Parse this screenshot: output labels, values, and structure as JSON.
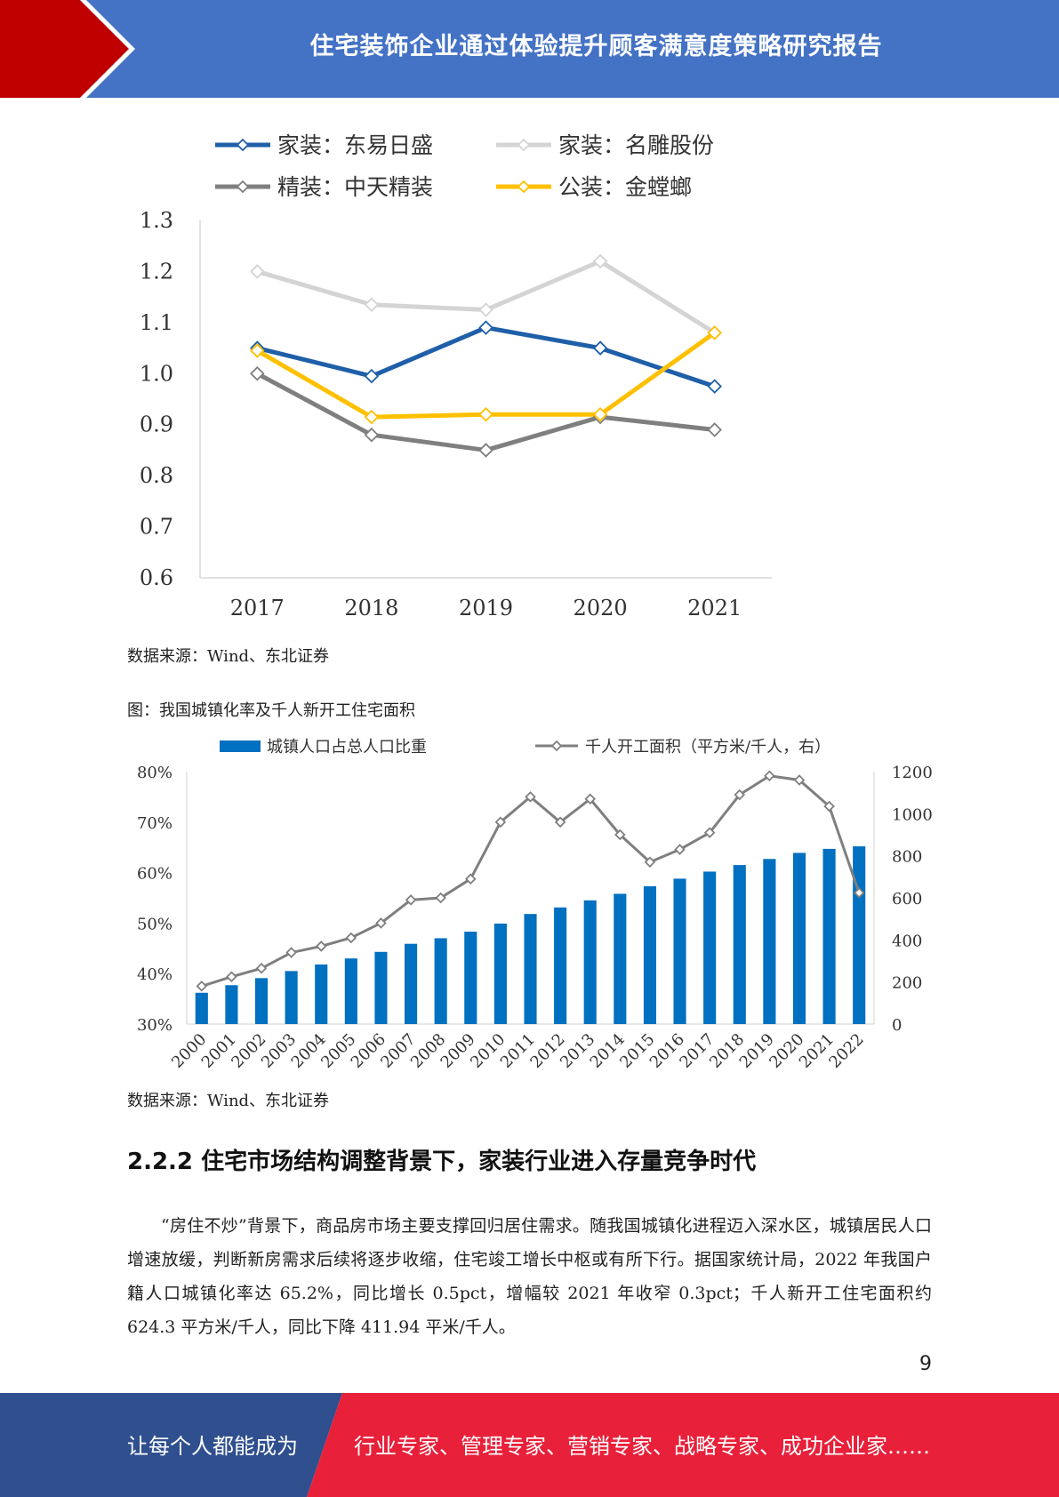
{
  "header": {
    "title": "住宅装饰企业通过体验提升顾客满意度策略研究报告"
  },
  "colors": {
    "header_blue": "#4472c4",
    "header_red": "#c00000",
    "footer_blue": "#2f4f8f",
    "footer_red": "#e8203a"
  },
  "figure1": {
    "source": "数据来源：Wind、东北证券",
    "chart_data": {
      "type": "line",
      "categories": [
        "2017",
        "2018",
        "2019",
        "2020",
        "2021"
      ],
      "ylim": [
        0.6,
        1.3
      ],
      "yticks": [
        "0.6",
        "0.7",
        "0.8",
        "0.9",
        "1.0",
        "1.1",
        "1.2",
        "1.3"
      ],
      "series": [
        {
          "name": "家装：东易日盛",
          "color": "#1f5fa8",
          "values": [
            1.05,
            0.995,
            1.09,
            1.05,
            0.975
          ]
        },
        {
          "name": "家装：名雕股份",
          "color": "#d4d4d4",
          "values": [
            1.2,
            1.135,
            1.125,
            1.22,
            1.08
          ]
        },
        {
          "name": "精装：中天精装",
          "color": "#7f7f7f",
          "values": [
            1.0,
            0.88,
            0.85,
            0.915,
            0.89
          ]
        },
        {
          "name": "公装：金螳螂",
          "color": "#ffc000",
          "values": [
            1.045,
            0.915,
            0.92,
            0.92,
            1.08
          ]
        }
      ]
    }
  },
  "figure2": {
    "caption": "图：我国城镇化率及千人新开工住宅面积",
    "source": "数据来源：Wind、东北证券",
    "chart_data": {
      "type": "bar",
      "categories": [
        "2000",
        "2001",
        "2002",
        "2003",
        "2004",
        "2005",
        "2006",
        "2007",
        "2008",
        "2009",
        "2010",
        "2011",
        "2012",
        "2013",
        "2014",
        "2015",
        "2016",
        "2017",
        "2018",
        "2019",
        "2020",
        "2021",
        "2022"
      ],
      "y_left_ticks": [
        "30%",
        "40%",
        "50%",
        "60%",
        "70%",
        "80%"
      ],
      "y_left_lim": [
        30,
        80
      ],
      "y_right_ticks": [
        "0",
        "200",
        "400",
        "600",
        "800",
        "1000",
        "1200"
      ],
      "y_right_lim": [
        0,
        1200
      ],
      "series": [
        {
          "name": "城镇人口占总人口比重",
          "type": "bar",
          "color": "#0070c0",
          "values": [
            36.2,
            37.7,
            39.1,
            40.5,
            41.8,
            43.0,
            44.3,
            45.9,
            47.0,
            48.3,
            49.9,
            51.8,
            53.1,
            54.5,
            55.8,
            57.3,
            58.8,
            60.2,
            61.5,
            62.7,
            63.9,
            64.7,
            65.2
          ]
        },
        {
          "name": "千人开工面积（平方米/千人，右）",
          "type": "line",
          "color": "#7f7f7f",
          "values": [
            180,
            225,
            265,
            340,
            370,
            410,
            480,
            590,
            600,
            690,
            960,
            1080,
            960,
            1070,
            900,
            770,
            830,
            910,
            1090,
            1180,
            1160,
            1035,
            624
          ]
        }
      ]
    }
  },
  "section": {
    "heading": "2.2.2 住宅市场结构调整背景下，家装行业进入存量竞争时代",
    "paragraph": "“房住不炒”背景下，商品房市场主要支撑回归居住需求。随我国城镇化进程迈入深水区，城镇居民人口增速放缓，判断新房需求后续将逐步收缩，住宅竣工增长中枢或有所下行。据国家统计局，2022 年我国户籍人口城镇化率达 65.2%，同比增长 0.5pct，增幅较 2021 年收窄 0.3pct；千人新开工住宅面积约 624.3 平方米/千人，同比下降 411.94 平米/千人。"
  },
  "page_number": "9",
  "footer": {
    "left_text": "让每个人都能成为",
    "right_text": "行业专家、管理专家、营销专家、战略专家、成功企业家……"
  }
}
